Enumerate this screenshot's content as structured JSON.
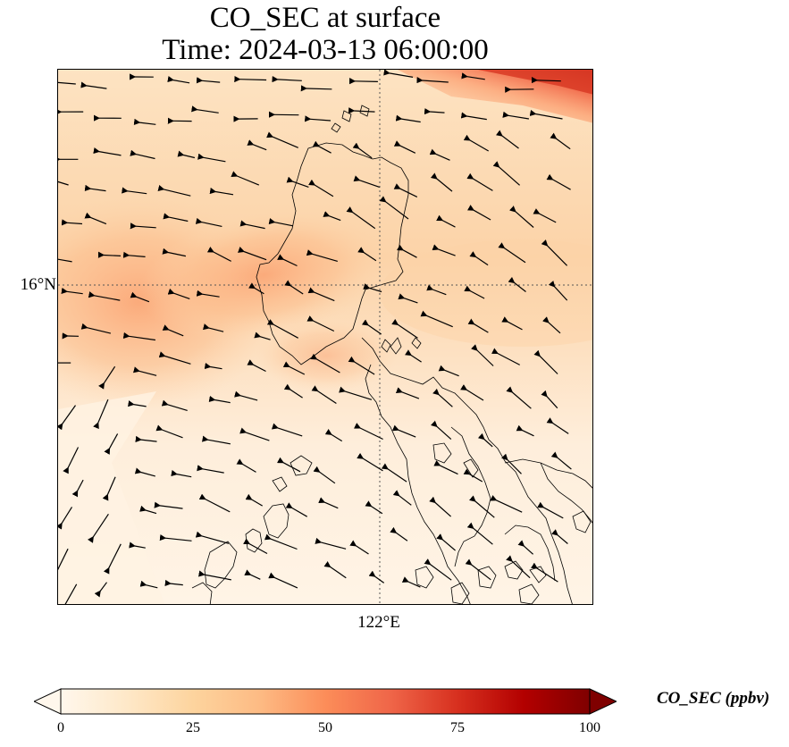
{
  "title": {
    "line1": "CO_SEC at surface",
    "line2": "Time: 2024-03-13 06:00:00"
  },
  "map": {
    "latitude_gridline_label": "16°N",
    "longitude_gridline_label": "122°E",
    "gridline_style": "dotted",
    "coastline_color": "#000000",
    "vector_color": "#000000",
    "field_description": "CO_SEC concentration field with wind vectors over northern Philippines (Luzon)"
  },
  "colorbar": {
    "label": "CO_SEC (ppbv)",
    "ticks": [
      "0",
      "25",
      "50",
      "75",
      "100"
    ],
    "range": [
      0,
      100
    ],
    "colormap": [
      "#fff7ec",
      "#fee8c8",
      "#fdd49e",
      "#fdbb84",
      "#fc8d59",
      "#ef6548",
      "#d7301f",
      "#b30000",
      "#7f0000"
    ],
    "extend": "both"
  }
}
